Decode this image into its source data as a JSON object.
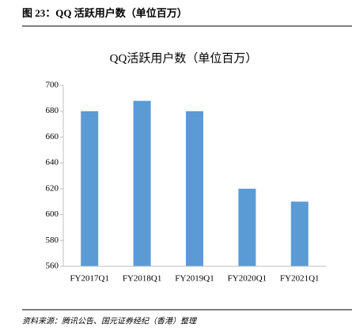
{
  "header": {
    "title": "图 23：QQ 活跃用户数（单位百万）"
  },
  "chart_data": {
    "type": "bar",
    "title": "QQ活跃用户数（单位百万）",
    "categories": [
      "FY2017Q1",
      "FY2018Q1",
      "FY2019Q1",
      "FY2020Q1",
      "FY2021Q1"
    ],
    "values": [
      680,
      688,
      680,
      620,
      610
    ],
    "color": "#5b9bd5",
    "ylim": [
      560,
      700
    ],
    "yticks": [
      560,
      580,
      600,
      620,
      640,
      660,
      680,
      700
    ],
    "grid": false
  },
  "footer": {
    "source": "资料来源：腾讯公告、国元证券经纪（香港）整理"
  }
}
